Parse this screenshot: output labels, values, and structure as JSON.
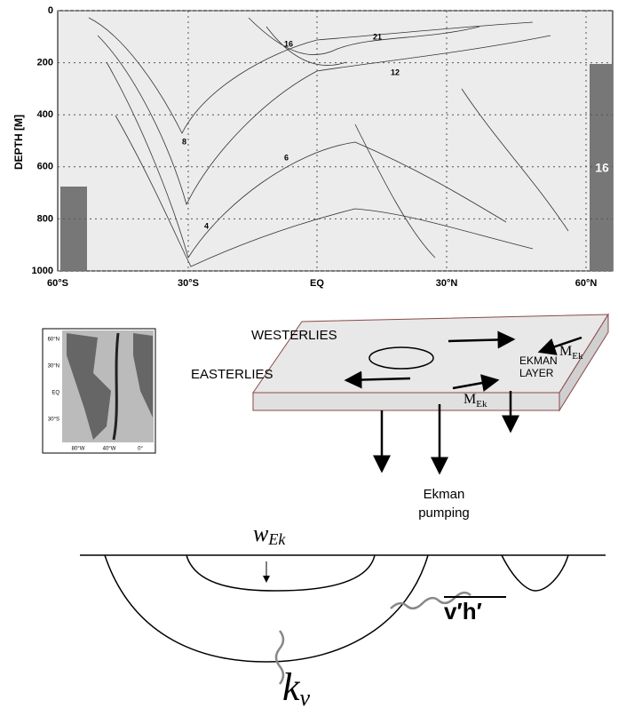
{
  "section_plot": {
    "y_label": "DEPTH [M]",
    "yticks": [
      0,
      200,
      400,
      600,
      800,
      1000
    ],
    "xticks": [
      "60°S",
      "30°S",
      "EQ",
      "30°N",
      "60°N"
    ],
    "section_label": "16",
    "contour_labels": [
      "21",
      "16",
      "12",
      "8",
      "6",
      "4"
    ]
  },
  "map": {
    "lat_labels": [
      "60°N",
      "30°N",
      "EQ",
      "30°S"
    ],
    "lon_labels": [
      "80°W",
      "40°W",
      "0°"
    ]
  },
  "ekman": {
    "westerlies": "WESTERLIES",
    "easterlies": "EASTERLIES",
    "layer": [
      "EKMAN",
      "LAYER"
    ],
    "transport": "M",
    "transport_sub": "Ek",
    "pumping": [
      "Ekman",
      "pumping"
    ]
  },
  "subduction": {
    "w": "w",
    "w_sub": "Ek",
    "eddy_flux": "v′h′",
    "diffusivity": "k",
    "diffusivity_sub": "v"
  }
}
